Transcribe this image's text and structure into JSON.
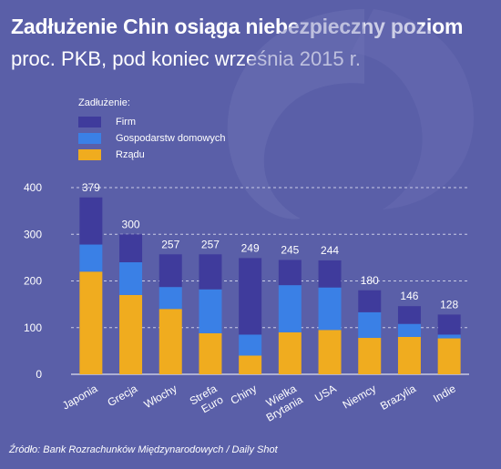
{
  "title": "Zadłużenie Chin osiąga niebezpieczny poziom",
  "subtitle": "proc. PKB, pod koniec września 2015 r.",
  "source": "Źródło: Bank Rozrachunków Międzynarodowych /  Daily Shot",
  "legend": {
    "title": "Zadłużenie:",
    "items": [
      "Firm",
      "Gospodarstw domowych",
      "Rządu"
    ]
  },
  "colors": {
    "background": "#5a5fa8",
    "firm": "#3f3b9c",
    "households": "#3a80e6",
    "government": "#f0ac1f"
  },
  "chart_data": {
    "type": "bar",
    "stacked": true,
    "categories": [
      "Japonia",
      "Grecja",
      "Włochy",
      "Strefa Euro",
      "Chiny",
      "Wielka Brytania",
      "USA",
      "Niemcy",
      "Brazylia",
      "Indie"
    ],
    "category_lines": [
      [
        "Japonia"
      ],
      [
        "Grecja"
      ],
      [
        "Włochy"
      ],
      [
        "Strefa",
        "Euro"
      ],
      [
        "Chiny"
      ],
      [
        "Wielka",
        "Brytania"
      ],
      [
        "USA"
      ],
      [
        "Niemcy"
      ],
      [
        "Brazylia"
      ],
      [
        "Indie"
      ]
    ],
    "series": [
      {
        "name": "Rządu",
        "values": [
          220,
          170,
          140,
          88,
          40,
          90,
          95,
          78,
          80,
          77
        ]
      },
      {
        "name": "Gospodarstw domowych",
        "values": [
          58,
          70,
          47,
          94,
          45,
          101,
          91,
          55,
          28,
          8
        ]
      },
      {
        "name": "Firm",
        "values": [
          101,
          60,
          70,
          75,
          164,
          54,
          58,
          47,
          38,
          43
        ]
      }
    ],
    "totals": [
      379,
      300,
      257,
      257,
      249,
      245,
      244,
      180,
      146,
      128
    ],
    "yticks": [
      0,
      100,
      200,
      300,
      400
    ],
    "ylim": [
      0,
      400
    ],
    "gridlines": "dashed"
  }
}
